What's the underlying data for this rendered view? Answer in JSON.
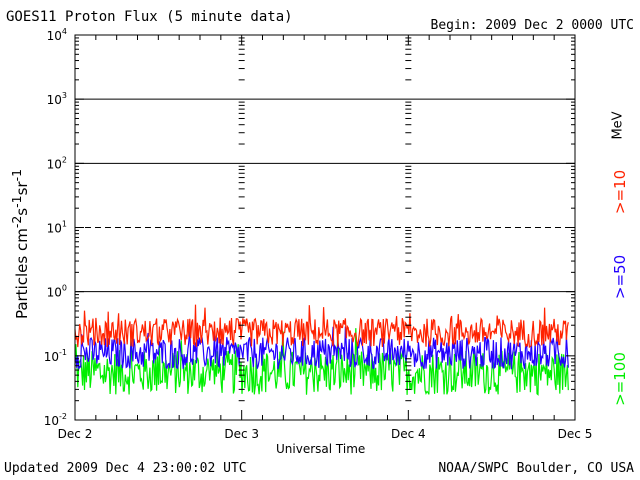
{
  "header": {
    "title": "GOES11 Proton Flux (5 minute data)",
    "begin": "Begin: 2009 Dec 2 0000 UTC"
  },
  "footer": {
    "updated": "Updated 2009 Dec  4 23:00:02 UTC",
    "source": "NOAA/SWPC Boulder, CO USA"
  },
  "chart_data": {
    "type": "line",
    "xlabel": "Universal Time",
    "ylabel_html": "Particles cm<sup>-2</sup>s<sup>-1</sup>sr<sup>-1</sup>",
    "y_scale": "log",
    "ylim": [
      0.01,
      10000
    ],
    "y_ticks": [
      {
        "value": 0.01,
        "base": "10",
        "exp": "-2"
      },
      {
        "value": 0.1,
        "base": "10",
        "exp": "-1"
      },
      {
        "value": 1,
        "base": "10",
        "exp": "0"
      },
      {
        "value": 10,
        "base": "10",
        "exp": "1"
      },
      {
        "value": 100,
        "base": "10",
        "exp": "2"
      },
      {
        "value": 1000,
        "base": "10",
        "exp": "3"
      },
      {
        "value": 10000,
        "base": "10",
        "exp": "4"
      }
    ],
    "x_categories": [
      "Dec 2",
      "Dec 3",
      "Dec 4",
      "Dec 5"
    ],
    "xlim": [
      0,
      3
    ],
    "x_unit": "days since 2009 Dec 2 0000 UTC",
    "data_end": 2.96,
    "grid": {
      "solid_levels": [
        1,
        100,
        1000
      ],
      "dashed_levels": [
        10
      ]
    },
    "series": [
      {
        "name": ">=10",
        "color": "#ff2200",
        "base": 0.23,
        "spread": 0.45
      },
      {
        "name": ">=50",
        "color": "#2200ff",
        "base": 0.11,
        "spread": 0.5
      },
      {
        "name": ">=100",
        "color": "#00ee00",
        "base": 0.055,
        "spread": 0.7
      }
    ],
    "legend_unit": "MeV",
    "legend_placement": "right"
  }
}
